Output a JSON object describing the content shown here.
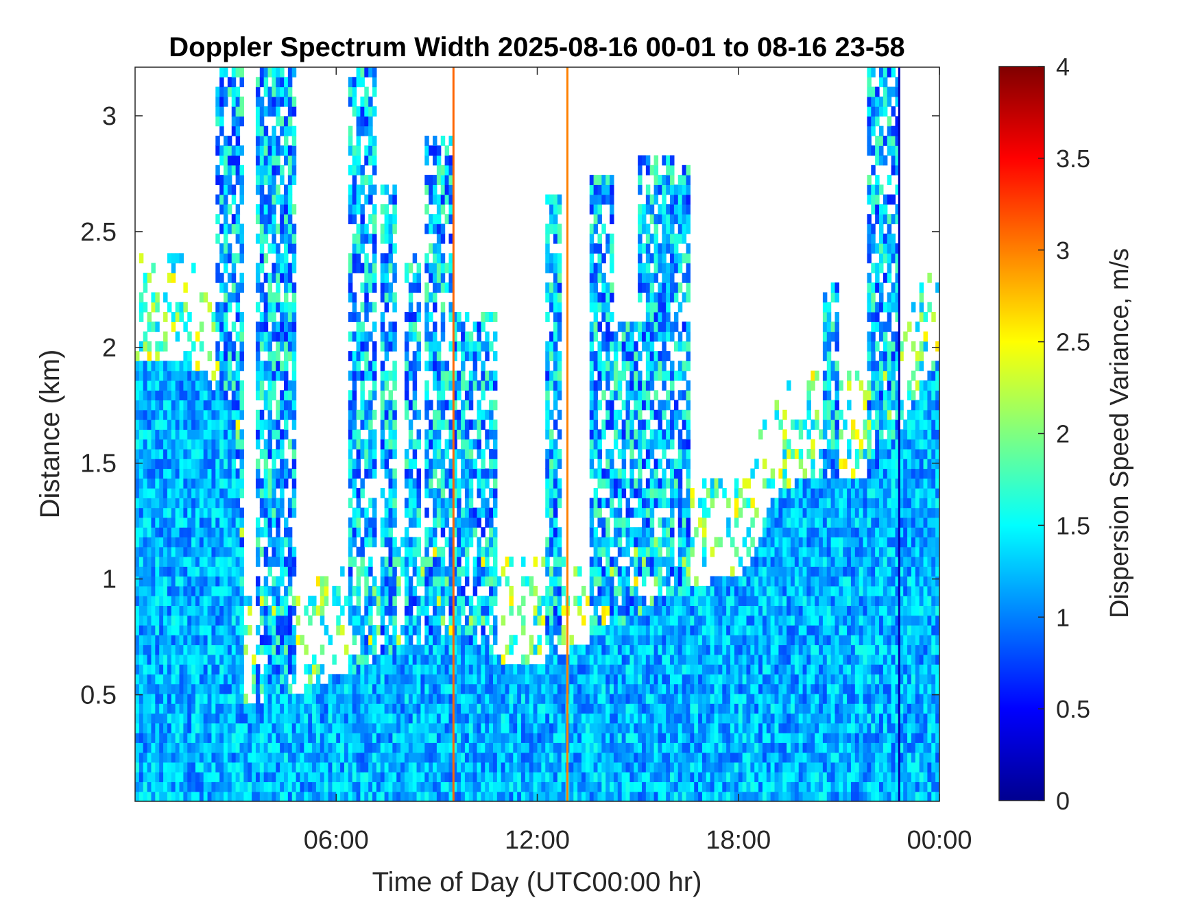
{
  "chart_data": {
    "type": "heatmap",
    "title": "Doppler Spectrum Width 2025-08-16 00-01 to 08-16 23-58",
    "xlabel": "Time of Day (UTC00:00 hr)",
    "ylabel": "Distance (km)",
    "xlim": [
      0,
      24
    ],
    "ylim": [
      0.04,
      3.21
    ],
    "x_ticks": [
      {
        "value": 6,
        "label": "06:00"
      },
      {
        "value": 12,
        "label": "12:00"
      },
      {
        "value": 18,
        "label": "18:00"
      },
      {
        "value": 24,
        "label": "00:00"
      }
    ],
    "y_ticks": [
      {
        "value": 0.5,
        "label": "0.5"
      },
      {
        "value": 1,
        "label": "1"
      },
      {
        "value": 1.5,
        "label": "1.5"
      },
      {
        "value": 2,
        "label": "2"
      },
      {
        "value": 2.5,
        "label": "2.5"
      },
      {
        "value": 3,
        "label": "3"
      }
    ],
    "colorbar": {
      "label": "Dispersion Speed Variance, m/s",
      "range": [
        0,
        4
      ],
      "colormap": "jet",
      "ticks": [
        {
          "value": 0,
          "label": "0"
        },
        {
          "value": 0.5,
          "label": "0.5"
        },
        {
          "value": 1,
          "label": "1"
        },
        {
          "value": 1.5,
          "label": "1.5"
        },
        {
          "value": 2,
          "label": "2"
        },
        {
          "value": 2.5,
          "label": "2.5"
        },
        {
          "value": 3,
          "label": "3"
        },
        {
          "value": 3.5,
          "label": "3.5"
        },
        {
          "value": 4,
          "label": "4"
        }
      ]
    },
    "grid": false,
    "dense_layer_top_km": [
      [
        0,
        1.96
      ],
      [
        1,
        1.96
      ],
      [
        2,
        1.9
      ],
      [
        3,
        1.7
      ],
      [
        3.3,
        0.47
      ],
      [
        4.5,
        0.5
      ],
      [
        5,
        0.5
      ],
      [
        5.5,
        0.55
      ],
      [
        6,
        0.58
      ],
      [
        7,
        0.63
      ],
      [
        8,
        0.72
      ],
      [
        9,
        0.75
      ],
      [
        9.5,
        0.76
      ],
      [
        10,
        0.73
      ],
      [
        11,
        0.65
      ],
      [
        12,
        0.64
      ],
      [
        13,
        0.7
      ],
      [
        14,
        0.77
      ],
      [
        15,
        0.85
      ],
      [
        16,
        0.92
      ],
      [
        17,
        0.99
      ],
      [
        18,
        1.0
      ],
      [
        18.5,
        1.1
      ],
      [
        19,
        1.35
      ],
      [
        20,
        1.45
      ],
      [
        21,
        1.45
      ],
      [
        22,
        1.45
      ],
      [
        23,
        1.7
      ],
      [
        24,
        1.96
      ]
    ],
    "cloud_columns": [
      {
        "start": 2.4,
        "end": 3.2,
        "top": 3.21
      },
      {
        "start": 3.6,
        "end": 4.8,
        "top": 3.21
      },
      {
        "start": 6.4,
        "end": 7.2,
        "top": 3.21
      },
      {
        "start": 7.3,
        "end": 7.8,
        "top": 2.7
      },
      {
        "start": 8.0,
        "end": 8.5,
        "top": 2.4
      },
      {
        "start": 8.7,
        "end": 9.5,
        "top": 2.9
      },
      {
        "start": 9.5,
        "end": 10.8,
        "top": 2.15
      },
      {
        "start": 12.2,
        "end": 12.7,
        "top": 2.65
      },
      {
        "start": 13.6,
        "end": 14.3,
        "top": 2.75
      },
      {
        "start": 14.3,
        "end": 15.0,
        "top": 2.1
      },
      {
        "start": 15.0,
        "end": 16.6,
        "top": 2.85
      },
      {
        "start": 20.5,
        "end": 21.0,
        "top": 2.3
      },
      {
        "start": 21.9,
        "end": 22.8,
        "top": 3.21
      }
    ],
    "vertical_lines": [
      {
        "x": 9.5,
        "value": 3.1
      },
      {
        "x": 12.9,
        "value": 3.0
      },
      {
        "x": 22.8,
        "value": 0.2
      }
    ],
    "typical_value_range": [
      0.8,
      1.6
    ]
  }
}
